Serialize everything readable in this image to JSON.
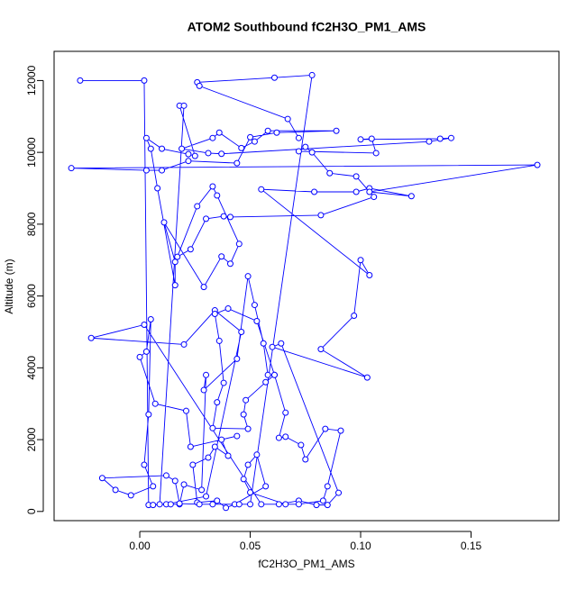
{
  "chart_data": {
    "type": "line",
    "title": "ATOM2 Southbound fC2H3O_PM1_AMS",
    "x_label": "fC2H3O_PM1_AMS",
    "y_label": "Altitude (m)",
    "color": "#0000ff",
    "marker": "open-circle",
    "xlim": [
      -0.0388,
      0.1898
    ],
    "ylim": [
      -256,
      12813
    ],
    "xticks": [
      {
        "value": 0,
        "label": "0.00"
      },
      {
        "value": 0.05,
        "label": "0.05"
      },
      {
        "value": 0.1,
        "label": "0.10"
      },
      {
        "value": 0.15,
        "label": "0.15"
      }
    ],
    "yticks": [
      0,
      2000,
      4000,
      6000,
      8000,
      10000,
      12000
    ],
    "x": [
      -0.027,
      0.002,
      0.004,
      0.006,
      0.012,
      0.03,
      0.046,
      0.034,
      0.02,
      -0.022,
      0.002,
      0.055,
      0.063,
      0.072,
      0.08,
      0.085,
      0.09,
      0.064,
      0.06,
      0.103,
      0.082,
      0.097,
      0.1,
      0.104,
      0.055,
      0.079,
      0.098,
      0.104,
      0.123,
      0.104,
      0.18,
      -0.031,
      0.003,
      0.01,
      0.022,
      0.044,
      0.05,
      0.062,
      0.089,
      0.058,
      0.052,
      0.046,
      0.036,
      0.033,
      0.019,
      0.031,
      0.037,
      0.131,
      0.141,
      0.136,
      0.1,
      0.105,
      0.107,
      0.072,
      0.075,
      0.078,
      0.086,
      0.098,
      0.106,
      0.082,
      0.041,
      0.038,
      0.03,
      0.023,
      0.017,
      0.026,
      0.033,
      0.035,
      0.045,
      0.041,
      0.037,
      0.029,
      0.011,
      0.016,
      0.016,
      0.008,
      0.005,
      0.003,
      0.01,
      0.022,
      0.025,
      0.018,
      0.02,
      0.009,
      0.014,
      0.018,
      0.02,
      0.028,
      0.03,
      0.029,
      0.044,
      0.049,
      0.052,
      0.056,
      0.058,
      0.061,
      0.053,
      0.04,
      0.034,
      0.036,
      0.038,
      0.035,
      0.033,
      0.049,
      0.047,
      0.048,
      0.057,
      0.061,
      0.066,
      0.063,
      0.066,
      0.073,
      0.075,
      0.084,
      0.091,
      0.085,
      0.083,
      0.072,
      0.066,
      0.05,
      0.047,
      0.049,
      0.053,
      0.057,
      0.043,
      0.039,
      0.035,
      0.026,
      0.024,
      0.031,
      0.034,
      0.04,
      0.037,
      0.044,
      0.023,
      0.021,
      0.007,
      0.0,
      0.003,
      0.005,
      0.004,
      0.002,
      0.006,
      -0.004,
      -0.011,
      -0.017,
      0.012,
      0.016,
      0.018,
      0.027,
      0.033,
      0.045,
      0.05,
      0.078,
      0.061,
      0.026,
      0.027,
      0.067,
      0.072
    ],
    "values": [
      12000,
      12000,
      180,
      180,
      200,
      420,
      5000,
      5600,
      4650,
      4830,
      5200,
      200,
      200,
      300,
      180,
      180,
      520,
      4680,
      4580,
      3730,
      4520,
      5450,
      7000,
      6580,
      8970,
      8900,
      8900,
      9000,
      8780,
      8900,
      9650,
      9560,
      9500,
      9500,
      9760,
      9700,
      10420,
      10550,
      10600,
      10600,
      10300,
      10120,
      10550,
      10400,
      10100,
      9980,
      9960,
      10300,
      10400,
      10380,
      10360,
      10380,
      9980,
      10030,
      10150,
      10000,
      9420,
      9330,
      8760,
      8250,
      8200,
      8220,
      8150,
      7300,
      7090,
      8500,
      9050,
      8800,
      7450,
      6900,
      7100,
      6250,
      8050,
      6950,
      6300,
      9000,
      10100,
      10400,
      10100,
      9950,
      9900,
      11300,
      11300,
      200,
      200,
      200,
      750,
      600,
      3800,
      3380,
      4250,
      6550,
      5750,
      4680,
      3800,
      3800,
      5300,
      5650,
      5500,
      4750,
      3580,
      3040,
      2320,
      2300,
      2700,
      3100,
      3600,
      3800,
      2750,
      2050,
      2080,
      1850,
      1450,
      2300,
      2250,
      700,
      300,
      200,
      200,
      530,
      900,
      1300,
      1580,
      700,
      200,
      100,
      300,
      250,
      1300,
      1500,
      1800,
      1550,
      2000,
      2100,
      1800,
      2800,
      3000,
      4300,
      4450,
      5350,
      2700,
      1300,
      700,
      450,
      600,
      930,
      1000,
      850,
      220,
      200,
      200,
      200,
      200,
      12150,
      12080,
      11950,
      11850,
      10930,
      10400
    ]
  }
}
